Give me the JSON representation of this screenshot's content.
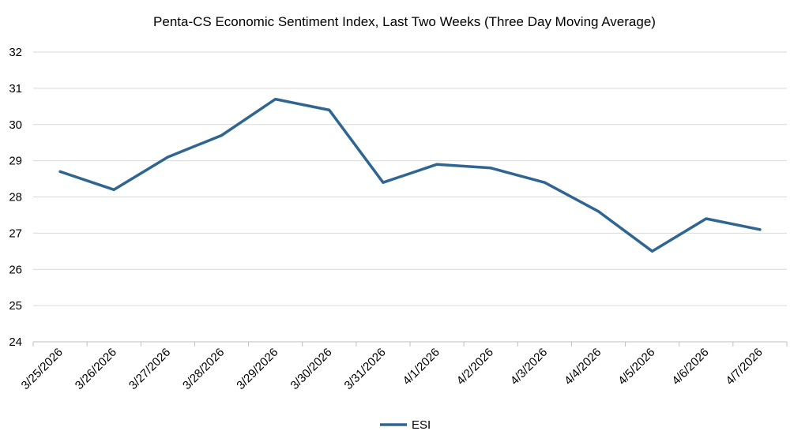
{
  "chart_data": {
    "type": "line",
    "title": "Penta-CS Economic Sentiment Index, Last Two Weeks (Three Day Moving Average)",
    "xlabel": "",
    "ylabel": "",
    "categories": [
      "3/25/2026",
      "3/26/2026",
      "3/27/2026",
      "3/28/2026",
      "3/29/2026",
      "3/30/2026",
      "3/31/2026",
      "4/1/2026",
      "4/2/2026",
      "4/3/2026",
      "4/4/2026",
      "4/5/2026",
      "4/6/2026",
      "4/7/2026"
    ],
    "series": [
      {
        "name": "ESI",
        "color": "#2f6591",
        "values": [
          28.7,
          28.2,
          29.1,
          29.7,
          30.7,
          30.4,
          28.4,
          28.9,
          28.8,
          28.4,
          27.6,
          26.5,
          27.4,
          27.1
        ]
      }
    ],
    "ylim": [
      24,
      32
    ],
    "yticks": [
      24,
      25,
      26,
      27,
      28,
      29,
      30,
      31,
      32
    ],
    "grid": true,
    "legend": "bottom-center"
  }
}
